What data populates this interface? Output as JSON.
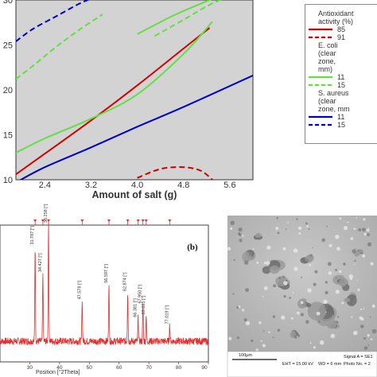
{
  "chart_data": [
    {
      "type": "contour",
      "xlabel": "Amount of salt (g)",
      "xlim": [
        1.9,
        6.0
      ],
      "ylim": [
        10,
        30
      ],
      "x_ticks": [
        "2.4",
        "3.2",
        "4.0",
        "4.8",
        "5.6"
      ],
      "y_ticks": [
        "30",
        "25",
        "20",
        "15",
        "10"
      ],
      "background": "#d3d3d3",
      "legend": {
        "groups": [
          {
            "title": [
              "Antioxidant",
              "activity (%)"
            ],
            "entries": [
              {
                "label": "85",
                "color": "#d00000",
                "style": "solid"
              },
              {
                "label": "91",
                "color": "#d00000",
                "style": "dashed"
              }
            ]
          },
          {
            "title": [
              "E. coli",
              "(clear",
              "zone,",
              "mm)"
            ],
            "entries": [
              {
                "label": "11",
                "color": "#66dd44",
                "style": "solid"
              },
              {
                "label": "15",
                "color": "#66dd44",
                "style": "dashed"
              }
            ]
          },
          {
            "title": [
              "S. aureus",
              "(clear",
              "zone, mm"
            ],
            "entries": [
              {
                "label": "11",
                "color": "#0000cc",
                "style": "solid"
              },
              {
                "label": "15",
                "color": "#0000cc",
                "style": "dashed"
              }
            ]
          }
        ]
      },
      "series": [
        {
          "name": "85",
          "color": "#d00000",
          "style": "solid",
          "x": [
            1.9,
            2.4,
            3.2,
            4.0,
            4.8,
            5.25
          ],
          "y": [
            10.6,
            12.9,
            16.6,
            20.5,
            24.6,
            26.9
          ]
        },
        {
          "name": "91",
          "color": "#d00000",
          "style": "dashed",
          "x": [
            4.0,
            4.4,
            4.8,
            5.1,
            5.3
          ],
          "y": [
            10.2,
            11.2,
            11.4,
            11.0,
            10.0
          ]
        },
        {
          "name": "11",
          "color": "#66dd44",
          "style": "solid",
          "x": [
            1.9,
            2.4,
            3.2,
            4.0,
            4.8,
            5.3
          ],
          "y": [
            13.0,
            14.6,
            16.8,
            19.5,
            24.0,
            27.6
          ]
        },
        {
          "name": "15",
          "color": "#66dd44",
          "style": "dashed",
          "x": [
            1.9,
            2.2,
            2.6,
            3.0,
            3.4
          ],
          "y": [
            21.2,
            22.7,
            24.8,
            26.7,
            28.4
          ]
        },
        {
          "name": "11",
          "color": "#0000cc",
          "style": "solid",
          "x": [
            1.9,
            2.4,
            3.2,
            4.0,
            4.8,
            6.0
          ],
          "y": [
            9.7,
            11.4,
            13.6,
            15.9,
            18.1,
            21.6
          ]
        },
        {
          "name": "15",
          "color": "#0000cc",
          "style": "dashed",
          "x": [
            1.9,
            2.2,
            2.6,
            3.0,
            3.3
          ],
          "y": [
            25.4,
            26.8,
            28.2,
            29.6,
            30.4
          ]
        }
      ],
      "extra_curves": [
        {
          "color": "#66dd44",
          "style": "solid",
          "x": [
            4.0,
            4.6,
            5.1,
            5.4
          ],
          "y": [
            26.2,
            28.2,
            29.6,
            30.4
          ]
        },
        {
          "color": "#66dd44",
          "style": "dashed",
          "x": [
            4.3,
            4.8,
            5.2,
            5.5
          ],
          "y": [
            26.0,
            27.8,
            29.3,
            30.2
          ]
        }
      ]
    },
    {
      "type": "line",
      "panel_label": "(b)",
      "xlabel": "Position [°2Theta]",
      "xlim": [
        20,
        90
      ],
      "x_ticks": [
        "30",
        "40",
        "50",
        "60",
        "70",
        "80",
        "90"
      ],
      "peaks": [
        {
          "x": 31.8,
          "height": 0.7,
          "label": "31.787 [°]"
        },
        {
          "x": 34.4,
          "height": 0.5,
          "label": "34.427 [°]"
        },
        {
          "x": 36.3,
          "height": 0.86,
          "label": "36.258 [°]"
        },
        {
          "x": 47.6,
          "height": 0.3,
          "label": "47.578 [°]"
        },
        {
          "x": 56.6,
          "height": 0.42,
          "label": "56.597 [°]"
        },
        {
          "x": 62.9,
          "height": 0.36,
          "label": "62.874 [°]"
        },
        {
          "x": 66.4,
          "height": 0.17,
          "label": "66.381 [°]"
        },
        {
          "x": 68.0,
          "height": 0.27,
          "label": "67.950 [°]"
        },
        {
          "x": 69.1,
          "height": 0.19,
          "label": "69.095 [°]"
        },
        {
          "x": 77.0,
          "height": 0.12,
          "label": "77.019 [°]"
        }
      ],
      "reference_markers_x": [
        31.8,
        34.4,
        36.3,
        47.6,
        56.6,
        62.9,
        66.4,
        68.0,
        69.1,
        77.0
      ]
    }
  ],
  "sem": {
    "scale_bar": "100µm",
    "eht": "EHT = 15.00 kV",
    "wd": "WD = 6 mm",
    "signal": "Signal A = SE1",
    "photo": "Photo No. = 2"
  }
}
